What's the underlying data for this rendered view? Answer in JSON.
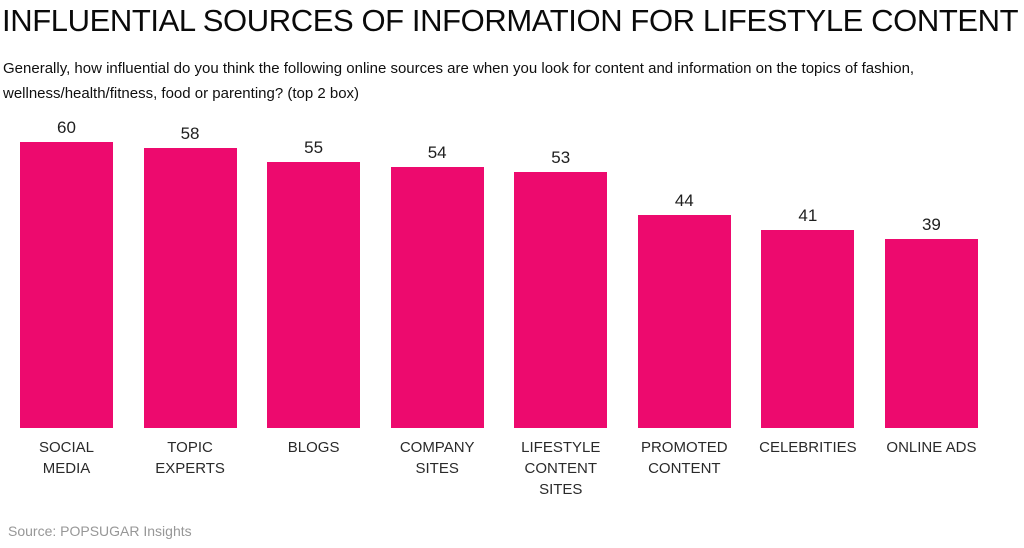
{
  "header": {
    "title": "INFLUENTIAL SOURCES OF INFORMATION FOR LIFESTYLE CONTENT",
    "subtitle": "Generally, how influential do you think the following online sources are when you look for content and information on the topics of fashion, wellness/health/fitness, food or parenting? (top 2 box)"
  },
  "footer": {
    "source": "Source: POPSUGAR Insights"
  },
  "chart_data": {
    "type": "bar",
    "title": "INFLUENTIAL SOURCES OF INFORMATION FOR LIFESTYLE CONTENT",
    "subtitle": "Generally, how influential do you think the following online sources are when you look for content and information on the topics of fashion, wellness/health/fitness, food or parenting? (top 2 box)",
    "categories": [
      "SOCIAL MEDIA",
      "TOPIC EXPERTS",
      "BLOGS",
      "COMPANY SITES",
      "LIFESTYLE CONTENT SITES",
      "PROMOTED CONTENT",
      "CELEBRITIES",
      "ONLINE ADS"
    ],
    "categories_wrapped": [
      "SOCIAL\nMEDIA",
      "TOPIC\nEXPERTS",
      "BLOGS",
      "COMPANY\nSITES",
      "LIFESTYLE\nCONTENT\nSITES",
      "PROMOTED\nCONTENT",
      "CELEBRITIES",
      "ONLINE ADS"
    ],
    "values": [
      60,
      58,
      55,
      54,
      53,
      44,
      41,
      39
    ],
    "value_labels": [
      "60",
      "58",
      "55",
      "54",
      "53",
      "44",
      "41",
      "39"
    ],
    "bar_color": "#ED0A6E",
    "value_label_color": "#1e1e1e",
    "category_label_color": "#2a2a2a",
    "ylim": [
      0,
      62
    ],
    "xlabel": "",
    "ylabel": "",
    "axes_visible": false,
    "gridlines": false,
    "legend": "none",
    "source": "Source: POPSUGAR Insights"
  }
}
